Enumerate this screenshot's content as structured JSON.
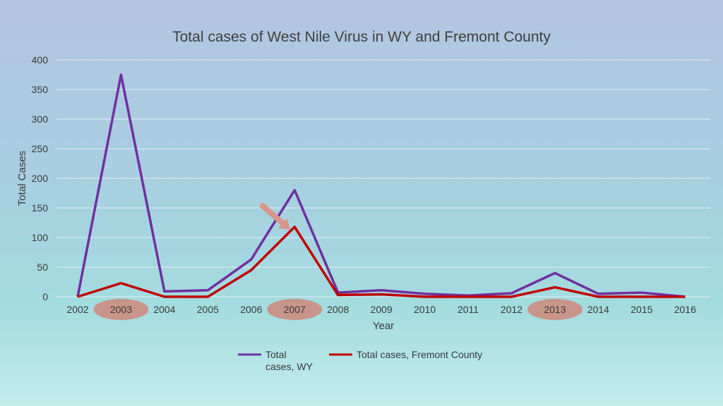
{
  "chart_data": {
    "type": "line",
    "title": "Total cases of West Nile Virus in WY and Fremont County",
    "xlabel": "Year",
    "ylabel": "Total Cases",
    "categories": [
      "2002",
      "2003",
      "2004",
      "2005",
      "2006",
      "2007",
      "2008",
      "2009",
      "2010",
      "2011",
      "2012",
      "2013",
      "2014",
      "2015",
      "2016"
    ],
    "ylim": [
      0,
      400
    ],
    "yticks": [
      "0",
      "50",
      "100",
      "150",
      "200",
      "250",
      "300",
      "350",
      "400"
    ],
    "grid": true,
    "legend_position": "bottom",
    "series": [
      {
        "name_lines": [
          "Total",
          "cases, WY"
        ],
        "color": "#7030a0",
        "values": [
          0,
          375,
          9,
          11,
          63,
          180,
          7,
          11,
          5,
          2,
          6,
          40,
          5,
          7,
          0
        ]
      },
      {
        "name": "Total cases, Fremont County",
        "color": "#c00000",
        "values": [
          0,
          23,
          0,
          0,
          45,
          118,
          3,
          4,
          0,
          0,
          0,
          16,
          0,
          0,
          0
        ]
      }
    ],
    "highlighted_categories": [
      "2003",
      "2007",
      "2013"
    ],
    "highlight_color": "#c9958a",
    "arrow_color": "#d9968a",
    "arrow_target": {
      "category": "2007",
      "value": 118
    }
  }
}
